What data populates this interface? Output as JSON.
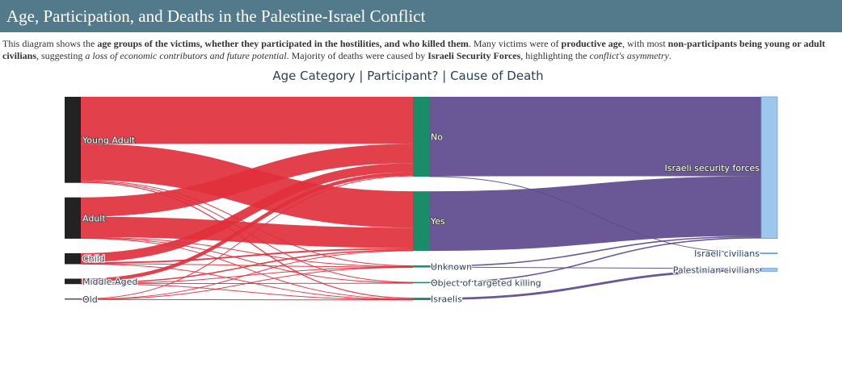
{
  "header": {
    "title": "Age, Participation, and Deaths in the Palestine-Israel Conflict"
  },
  "description": {
    "p1": "This diagram shows the ",
    "b1": "age groups of the victims, whether they participated in the hostilities, and who killed them",
    "p2": ". Many victims were of ",
    "b2": "productive age",
    "p3": ", with most ",
    "b3": "non-participants being young or adult civilians",
    "p4": ", suggesting ",
    "i1": "a loss of economic contributors and future potential",
    "p5": ". Majority of deaths were caused by ",
    "b4": "Israeli Security Forces",
    "p6": ", highlighting the ",
    "i2": "conflict's asymmetry",
    "p7": "."
  },
  "chart_data": {
    "type": "sankey",
    "title": "Age Category | Participant? | Cause of Death",
    "columns": [
      [
        "Young Adult",
        "Adult",
        "Child",
        "Middle-Aged",
        "Old"
      ],
      [
        "No",
        "Yes",
        "Unknown",
        "Object of targeted killing",
        "Israelis"
      ],
      [
        "Israeli security forces",
        "Israeli civilians",
        "Palestinian civilians"
      ]
    ],
    "nodes": [
      {
        "id": "Young Adult",
        "column": 0,
        "color": "#222222"
      },
      {
        "id": "Adult",
        "column": 0,
        "color": "#222222"
      },
      {
        "id": "Child",
        "column": 0,
        "color": "#222222"
      },
      {
        "id": "Middle-Aged",
        "column": 0,
        "color": "#222222"
      },
      {
        "id": "Old",
        "column": 0,
        "color": "#222222"
      },
      {
        "id": "No",
        "column": 1,
        "color": "#1a8c68"
      },
      {
        "id": "Yes",
        "column": 1,
        "color": "#1a8c68"
      },
      {
        "id": "Unknown",
        "column": 1,
        "color": "#1a8c68"
      },
      {
        "id": "Object of targeted killing",
        "column": 1,
        "color": "#1a8c68"
      },
      {
        "id": "Israelis",
        "column": 1,
        "color": "#1a8c68"
      },
      {
        "id": "Israeli security forces",
        "column": 2,
        "color": "#9ec7ee"
      },
      {
        "id": "Israeli civilians",
        "column": 2,
        "color": "#9ec7ee"
      },
      {
        "id": "Palestinian civilians",
        "column": 2,
        "color": "#9ec7ee"
      }
    ],
    "links": [
      {
        "source": "Young Adult",
        "target": "No",
        "value": 1850
      },
      {
        "source": "Young Adult",
        "target": "Yes",
        "value": 1430
      },
      {
        "source": "Young Adult",
        "target": "Unknown",
        "value": 35
      },
      {
        "source": "Young Adult",
        "target": "Object of targeted killing",
        "value": 30
      },
      {
        "source": "Young Adult",
        "target": "Israelis",
        "value": 40
      },
      {
        "source": "Adult",
        "target": "No",
        "value": 760
      },
      {
        "source": "Adult",
        "target": "Yes",
        "value": 800
      },
      {
        "source": "Adult",
        "target": "Unknown",
        "value": 25
      },
      {
        "source": "Adult",
        "target": "Object of targeted killing",
        "value": 15
      },
      {
        "source": "Adult",
        "target": "Israelis",
        "value": 25
      },
      {
        "source": "Child",
        "target": "No",
        "value": 350
      },
      {
        "source": "Child",
        "target": "Yes",
        "value": 60
      },
      {
        "source": "Child",
        "target": "Unknown",
        "value": 10
      },
      {
        "source": "Child",
        "target": "Israelis",
        "value": 10
      },
      {
        "source": "Middle-Aged",
        "target": "No",
        "value": 140
      },
      {
        "source": "Middle-Aged",
        "target": "Yes",
        "value": 50
      },
      {
        "source": "Middle-Aged",
        "target": "Unknown",
        "value": 8
      },
      {
        "source": "Middle-Aged",
        "target": "Object of targeted killing",
        "value": 5
      },
      {
        "source": "Middle-Aged",
        "target": "Israelis",
        "value": 10
      },
      {
        "source": "Old",
        "target": "No",
        "value": 25
      },
      {
        "source": "Old",
        "target": "Yes",
        "value": 5
      },
      {
        "source": "Old",
        "target": "Unknown",
        "value": 2
      },
      {
        "source": "Old",
        "target": "Israelis",
        "value": 5
      },
      {
        "source": "No",
        "target": "Israeli security forces",
        "value": 3125
      },
      {
        "source": "Yes",
        "target": "Israeli security forces",
        "value": 2345
      },
      {
        "source": "No",
        "target": "Israeli civilians",
        "value": 20
      },
      {
        "source": "Yes",
        "target": "Palestinian civilians",
        "value": 0
      },
      {
        "source": "Unknown",
        "target": "Israeli security forces",
        "value": 50
      },
      {
        "source": "Unknown",
        "target": "Palestinian civilians",
        "value": 30
      },
      {
        "source": "Object of targeted killing",
        "target": "Israeli security forces",
        "value": 50
      },
      {
        "source": "Israelis",
        "target": "Palestinian civilians",
        "value": 90
      }
    ],
    "link_colors": {
      "column0": "#e0303c",
      "column1": "#5c4a8c"
    }
  }
}
